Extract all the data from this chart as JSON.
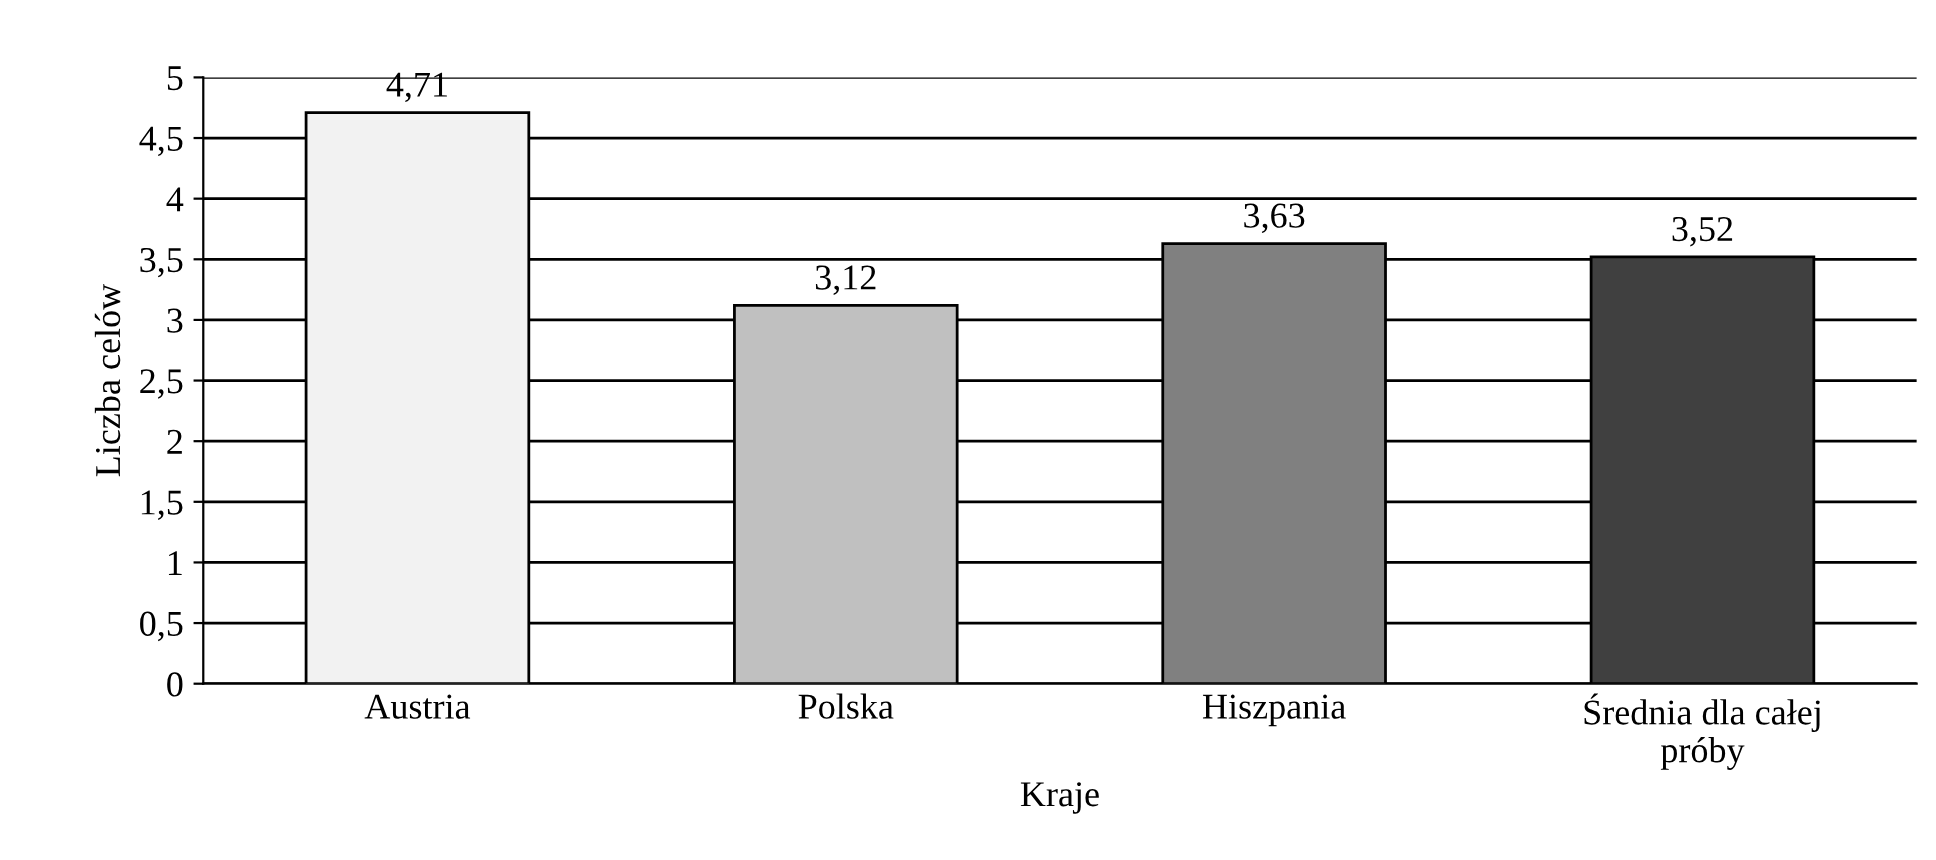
{
  "chart_data": {
    "type": "bar",
    "xlabel": "Kraje",
    "ylabel": "Liczba celów",
    "categories": [
      "Austria",
      "Polska",
      "Hiszpania",
      "Średnia dla całej\npróby"
    ],
    "values": [
      4.71,
      3.12,
      3.63,
      3.52
    ],
    "colors": [
      "#f2f2f2",
      "#c0c0c0",
      "#808080",
      "#404040"
    ],
    "value_labels": [
      "4,71",
      "3,12",
      "3,63",
      "3,52"
    ],
    "ylim": [
      0,
      5
    ],
    "yticks": [
      0,
      {
        "value": 0.5,
        "label": "0,5"
      },
      1,
      {
        "value": 1.5,
        "label": "1,5"
      },
      2,
      {
        "value": 2.5,
        "label": "2,5"
      },
      3,
      {
        "value": 3.5,
        "label": "3,5"
      },
      4,
      {
        "value": 4.5,
        "label": "4,5"
      },
      5
    ],
    "grid": "y",
    "legend": false
  }
}
